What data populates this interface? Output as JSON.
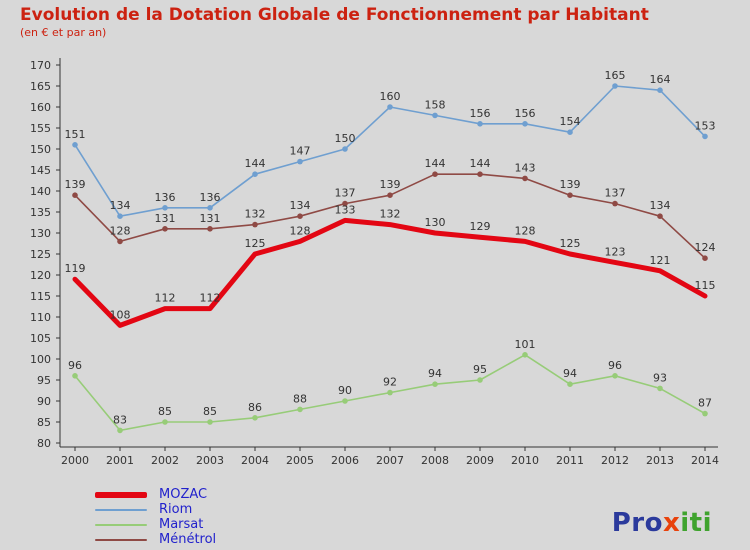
{
  "title": "Evolution de la Dotation Globale de Fonctionnement par Habitant",
  "subtitle": "(en € et par an)",
  "colors": {
    "background": "#d8d8d8",
    "title": "#cc2211",
    "legend_label": "#2222cc",
    "axis": "#333333",
    "point_label": "#333333"
  },
  "chart_data": {
    "type": "line",
    "x": [
      "2000",
      "2001",
      "2002",
      "2003",
      "2004",
      "2005",
      "2006",
      "2007",
      "2008",
      "2009",
      "2010",
      "2011",
      "2012",
      "2013",
      "2014"
    ],
    "ylim": [
      80,
      170
    ],
    "ytick_step": 5,
    "grid": false,
    "legend_position": "bottom-left",
    "series": [
      {
        "name": "MOZAC",
        "color": "#e30613",
        "width": 5,
        "markers": false,
        "values": [
          119,
          108,
          112,
          112,
          125,
          128,
          133,
          132,
          130,
          129,
          128,
          125,
          123,
          121,
          115
        ]
      },
      {
        "name": "Riom",
        "color": "#6f9fd0",
        "width": 1.6,
        "markers": true,
        "values": [
          151,
          134,
          136,
          136,
          144,
          147,
          150,
          160,
          158,
          156,
          156,
          154,
          165,
          164,
          153
        ]
      },
      {
        "name": "Marsat",
        "color": "#97cc78",
        "width": 1.6,
        "markers": true,
        "values": [
          96,
          83,
          85,
          85,
          86,
          88,
          90,
          92,
          94,
          95,
          101,
          94,
          96,
          93,
          87
        ]
      },
      {
        "name": "Ménétrol",
        "color": "#8f4a45",
        "width": 1.6,
        "markers": true,
        "values": [
          139,
          128,
          131,
          131,
          132,
          134,
          137,
          139,
          144,
          144,
          143,
          139,
          137,
          134,
          124
        ]
      }
    ]
  },
  "logo": {
    "pro": "Pro",
    "x": "x",
    "iti": "iti"
  }
}
